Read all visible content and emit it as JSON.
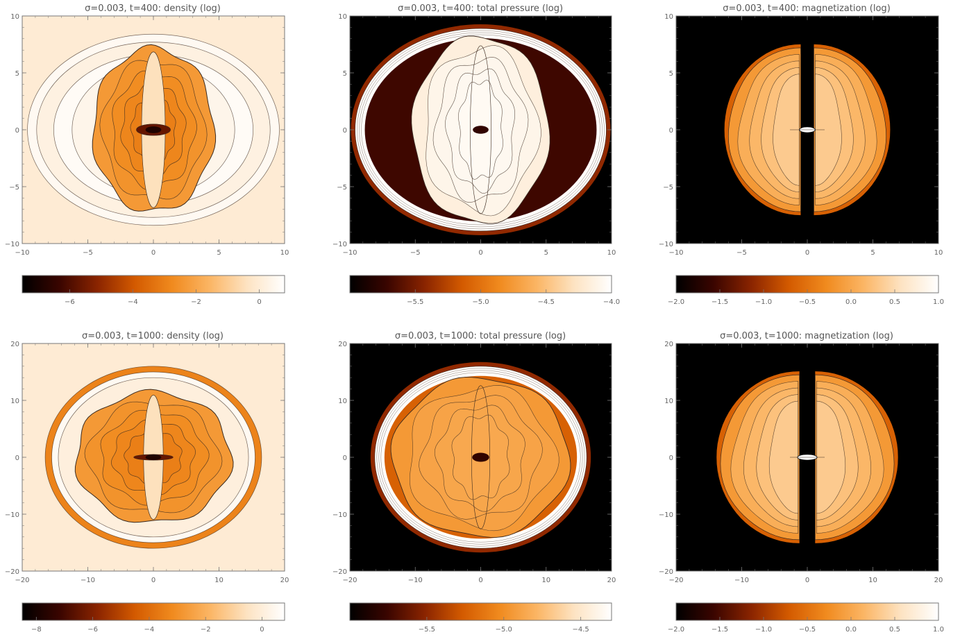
{
  "colors": {
    "colormap": [
      "#000000",
      "#3a0500",
      "#8a2400",
      "#d35a00",
      "#f08a1e",
      "#fbb564",
      "#fde3c2",
      "#ffffff"
    ],
    "contour": "#3a2a20",
    "axis": "#777777"
  },
  "chart_data": [
    {
      "type": "heatmap",
      "title": "σ=0.003, t=400: density (log)",
      "xlim": [
        -10,
        10
      ],
      "ylim": [
        -10,
        10
      ],
      "xticks": [
        "−10",
        "−5",
        "0",
        "5",
        "10"
      ],
      "yticks": [
        "10",
        "5",
        "0",
        "−5",
        "−10"
      ],
      "colorbar": {
        "range": [
          -7.5,
          0.8
        ],
        "ticks": [
          -6,
          -4,
          -2,
          0
        ],
        "tick_labels": [
          "−6",
          "−4",
          "−2",
          "0"
        ]
      },
      "field": "density",
      "background_level": 0.9
    },
    {
      "type": "heatmap",
      "title": "σ=0.003, t=400: total pressure (log)",
      "xlim": [
        -10,
        10
      ],
      "ylim": [
        -10,
        10
      ],
      "xticks": [
        "−10",
        "−5",
        "0",
        "5",
        "10"
      ],
      "yticks": [
        "10",
        "5",
        "0",
        "−5",
        "−10"
      ],
      "colorbar": {
        "range": [
          -6.0,
          -4.0
        ],
        "ticks": [
          -5.5,
          -5.0,
          -4.5,
          -4.0
        ],
        "tick_labels": [
          "−5.5",
          "−5.0",
          "−4.5",
          "−4.0"
        ]
      },
      "field": "pressure",
      "background_level": 0.0
    },
    {
      "type": "heatmap",
      "title": "σ=0.003, t=400: magnetization (log)",
      "xlim": [
        -10,
        10
      ],
      "ylim": [
        -10,
        10
      ],
      "xticks": [
        "−10",
        "−5",
        "0",
        "5",
        "10"
      ],
      "yticks": [
        "10",
        "5",
        "0",
        "−5",
        "−10"
      ],
      "colorbar": {
        "range": [
          -2.0,
          1.0
        ],
        "ticks": [
          -2.0,
          -1.5,
          -1.0,
          -0.5,
          0.0,
          0.5,
          1.0
        ],
        "tick_labels": [
          "−2.0",
          "−1.5",
          "−1.0",
          "−0.5",
          "0.0",
          "0.5",
          "1.0"
        ]
      },
      "field": "magnetization",
      "background_level": 0.0
    },
    {
      "type": "heatmap",
      "title": "σ=0.003, t=1000: density (log)",
      "xlim": [
        -20,
        20
      ],
      "ylim": [
        -20,
        20
      ],
      "xticks": [
        "−20",
        "−10",
        "0",
        "10",
        "20"
      ],
      "yticks": [
        "20",
        "10",
        "0",
        "−10",
        "−20"
      ],
      "colorbar": {
        "range": [
          -8.5,
          0.8
        ],
        "ticks": [
          -8,
          -6,
          -4,
          -2,
          0
        ],
        "tick_labels": [
          "−8",
          "−6",
          "−4",
          "−2",
          "0"
        ]
      },
      "field": "density",
      "background_level": 0.9
    },
    {
      "type": "heatmap",
      "title": "σ=0.003, t=1000: total pressure (log)",
      "xlim": [
        -20,
        20
      ],
      "ylim": [
        -20,
        20
      ],
      "xticks": [
        "−20",
        "−10",
        "0",
        "10",
        "20"
      ],
      "yticks": [
        "20",
        "10",
        "0",
        "−10",
        "−20"
      ],
      "colorbar": {
        "range": [
          -6.0,
          -4.3
        ],
        "ticks": [
          -5.5,
          -5.0,
          -4.5
        ],
        "tick_labels": [
          "−5.5",
          "−5.0",
          "−4.5"
        ]
      },
      "field": "pressure",
      "background_level": 0.0
    },
    {
      "type": "heatmap",
      "title": "σ=0.003, t=1000: magnetization (log)",
      "xlim": [
        -20,
        20
      ],
      "ylim": [
        -20,
        20
      ],
      "xticks": [
        "−20",
        "−10",
        "0",
        "10",
        "20"
      ],
      "yticks": [
        "20",
        "10",
        "0",
        "−10",
        "−20"
      ],
      "colorbar": {
        "range": [
          -2.0,
          1.0
        ],
        "ticks": [
          -2.0,
          -1.5,
          -1.0,
          -0.5,
          0.0,
          0.5,
          1.0
        ],
        "tick_labels": [
          "−2.0",
          "−1.5",
          "−1.0",
          "−0.5",
          "0.0",
          "0.5",
          "1.0"
        ]
      },
      "field": "magnetization",
      "background_level": 0.0
    }
  ]
}
